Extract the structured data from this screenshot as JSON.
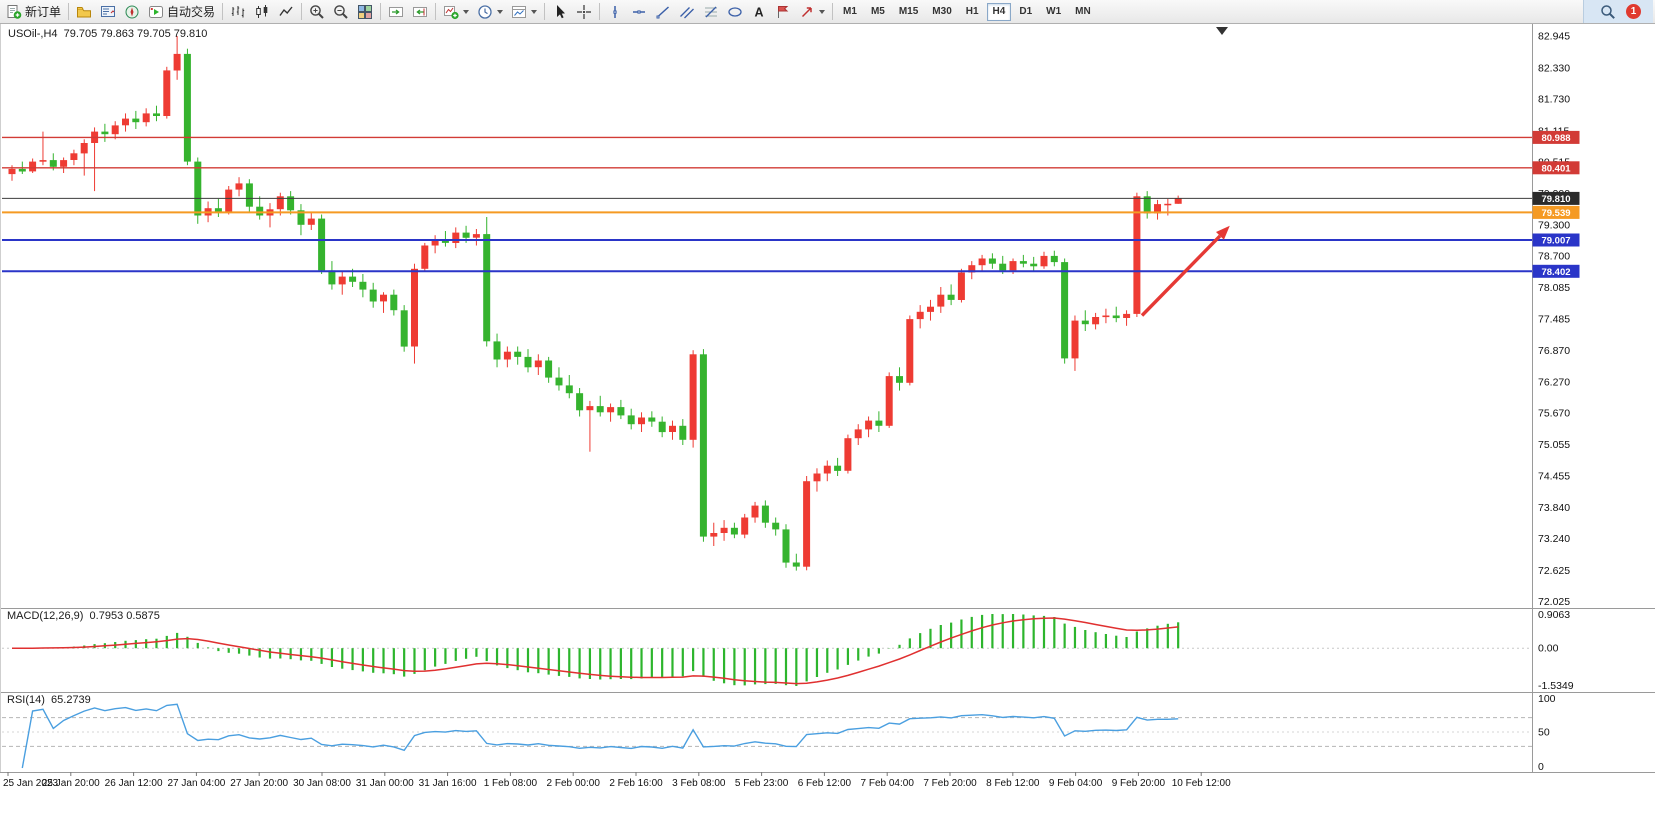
{
  "toolbar": {
    "notification_count": "1",
    "active_timeframe": "H4",
    "timeframes": [
      "M1",
      "M5",
      "M15",
      "M30",
      "H1",
      "H4",
      "D1",
      "W1",
      "MN"
    ],
    "items": [
      {
        "type": "btn",
        "icon": "new-order",
        "label": "新订单",
        "name": "new-order-button"
      },
      {
        "type": "sep"
      },
      {
        "type": "btn",
        "icon": "profiles",
        "name": "profiles-button"
      },
      {
        "type": "btn",
        "icon": "market-watch",
        "name": "market-watch-button"
      },
      {
        "type": "btn",
        "icon": "navigator",
        "name": "navigator-button"
      },
      {
        "type": "btn",
        "icon": "auto-trading",
        "label": "自动交易",
        "name": "auto-trading-button"
      },
      {
        "type": "sep"
      },
      {
        "type": "btn",
        "icon": "chart-bars",
        "name": "bar-chart-button"
      },
      {
        "type": "btn",
        "icon": "chart-candles",
        "name": "candlestick-chart-button"
      },
      {
        "type": "btn",
        "icon": "chart-line",
        "name": "line-chart-button"
      },
      {
        "type": "sep"
      },
      {
        "type": "btn",
        "icon": "zoom-in",
        "name": "zoom-in-button"
      },
      {
        "type": "btn",
        "icon": "zoom-out",
        "name": "zoom-out-button"
      },
      {
        "type": "btn",
        "icon": "tile-windows",
        "name": "tile-windows-button"
      },
      {
        "type": "sep"
      },
      {
        "type": "btn",
        "icon": "auto-scroll",
        "name": "auto-scroll-button"
      },
      {
        "type": "btn",
        "icon": "chart-shift",
        "name": "chart-shift-button"
      },
      {
        "type": "sep"
      },
      {
        "type": "btn",
        "icon": "indicators",
        "caret": true,
        "name": "indicators-button"
      },
      {
        "type": "btn",
        "icon": "periods",
        "caret": true,
        "name": "periods-button"
      },
      {
        "type": "btn",
        "icon": "templates",
        "caret": true,
        "name": "templates-button"
      },
      {
        "type": "sep"
      },
      {
        "type": "btn",
        "icon": "cursor",
        "name": "cursor-button"
      },
      {
        "type": "btn",
        "icon": "crosshair",
        "name": "crosshair-button"
      },
      {
        "type": "sep"
      },
      {
        "type": "btn",
        "icon": "vline",
        "name": "vertical-line-button"
      },
      {
        "type": "btn",
        "icon": "hline",
        "name": "horizontal-line-button"
      },
      {
        "type": "btn",
        "icon": "trendline",
        "name": "trendline-button"
      },
      {
        "type": "btn",
        "icon": "channel",
        "name": "channel-button"
      },
      {
        "type": "btn",
        "icon": "fibonacci",
        "name": "fibonacci-button"
      },
      {
        "type": "btn",
        "icon": "shapes",
        "name": "shapes-button"
      },
      {
        "type": "btn",
        "icon": "text",
        "name": "text-button"
      },
      {
        "type": "btn",
        "icon": "text-label",
        "name": "text-label-button"
      },
      {
        "type": "btn",
        "icon": "arrows",
        "caret": true,
        "name": "arrows-button"
      },
      {
        "type": "sep"
      }
    ]
  },
  "chart": {
    "symbol_period": "USOil-,H4",
    "ohlc_text": "79.705 79.863 79.705 79.810"
  },
  "chart_data": {
    "type": "candlestick",
    "symbol": "USOil",
    "period": "H4",
    "colors": {
      "bull": "#ee3b33",
      "bear": "#35b32e",
      "macd_histogram": "#2db52d",
      "macd_signal": "#e03030",
      "rsi_line": "#4a9fe0",
      "resistance_line": "#d23b36",
      "support_line": "#2a35c8",
      "alert_line": "#f59a23",
      "bid_line": "#3c3c3c",
      "arrow": "#e53935"
    },
    "price_axis_ticks": [
      "82.945",
      "82.330",
      "81.730",
      "81.115",
      "80.515",
      "79.900",
      "79.300",
      "78.700",
      "78.085",
      "77.485",
      "76.870",
      "76.270",
      "75.670",
      "75.055",
      "74.455",
      "73.840",
      "73.240",
      "72.625",
      "72.025"
    ],
    "time_axis_labels": [
      "25 Jan 2023",
      "25 Jan 20:00",
      "26 Jan 12:00",
      "27 Jan 04:00",
      "27 Jan 20:00",
      "30 Jan 08:00",
      "31 Jan 00:00",
      "31 Jan 16:00",
      "1 Feb 08:00",
      "2 Feb 00:00",
      "2 Feb 16:00",
      "3 Feb 08:00",
      "5 Feb 23:00",
      "6 Feb 12:00",
      "7 Feb 04:00",
      "7 Feb 20:00",
      "8 Feb 12:00",
      "9 Feb 04:00",
      "9 Feb 20:00",
      "10 Feb 12:00"
    ],
    "horizontal_lines": [
      {
        "price": 80.988,
        "label": "80.988",
        "role": "resistance",
        "color": "#d23b36",
        "width": 1.4
      },
      {
        "price": 80.401,
        "label": "80.401",
        "role": "resistance",
        "color": "#d23b36",
        "width": 1.4
      },
      {
        "price": 79.539,
        "label": "79.539",
        "role": "alert",
        "color": "#f59a23",
        "width": 2
      },
      {
        "price": 79.007,
        "label": "79.007",
        "role": "support",
        "color": "#2a35c8",
        "width": 2
      },
      {
        "price": 78.402,
        "label": "78.402",
        "role": "support",
        "color": "#2a35c8",
        "width": 2
      }
    ],
    "bid_line": {
      "price": 79.81,
      "label": "79.810",
      "color": "#3c3c3c"
    },
    "annotations": [
      {
        "type": "arrow",
        "from": {
          "bar": 109.5,
          "price": 77.55
        },
        "to": {
          "bar": 118,
          "price": 79.28
        },
        "color": "#e53935"
      }
    ],
    "macd": {
      "label": "MACD(12,26,9)",
      "values_text": "0.7953 0.5875",
      "main_value": "0.7953",
      "signal_value": "0.5875",
      "params": [
        12,
        26,
        9
      ],
      "axis": {
        "max": "0.9063",
        "zero": "0.00",
        "min": "-1.5349"
      }
    },
    "rsi": {
      "label": "RSI(14)",
      "value": "65.2739",
      "period": 14,
      "axis": [
        "100",
        "50",
        "0"
      ],
      "levels": [
        70,
        50,
        30
      ]
    },
    "candles": [
      [
        80.28,
        80.45,
        80.15,
        80.38
      ],
      [
        80.38,
        80.52,
        80.28,
        80.33
      ],
      [
        80.33,
        80.58,
        80.3,
        80.52
      ],
      [
        80.52,
        81.1,
        80.45,
        80.55
      ],
      [
        80.55,
        80.68,
        80.35,
        80.42
      ],
      [
        80.42,
        80.6,
        80.3,
        80.55
      ],
      [
        80.55,
        80.75,
        80.45,
        80.68
      ],
      [
        80.68,
        80.95,
        80.25,
        80.88
      ],
      [
        80.88,
        81.18,
        79.95,
        81.1
      ],
      [
        81.1,
        81.25,
        80.9,
        81.05
      ],
      [
        81.05,
        81.3,
        80.95,
        81.22
      ],
      [
        81.22,
        81.45,
        81.1,
        81.35
      ],
      [
        81.35,
        81.5,
        81.15,
        81.28
      ],
      [
        81.28,
        81.55,
        81.2,
        81.45
      ],
      [
        81.45,
        81.6,
        81.3,
        81.4
      ],
      [
        81.4,
        82.35,
        81.35,
        82.28
      ],
      [
        82.28,
        82.945,
        82.1,
        82.6
      ],
      [
        82.6,
        82.7,
        80.45,
        80.52
      ],
      [
        80.52,
        80.6,
        79.32,
        79.48
      ],
      [
        79.48,
        79.75,
        79.35,
        79.62
      ],
      [
        79.62,
        79.8,
        79.45,
        79.55
      ],
      [
        79.55,
        80.05,
        79.5,
        79.98
      ],
      [
        79.98,
        80.22,
        79.85,
        80.1
      ],
      [
        80.1,
        80.18,
        79.55,
        79.65
      ],
      [
        79.65,
        79.85,
        79.4,
        79.48
      ],
      [
        79.48,
        79.72,
        79.25,
        79.6
      ],
      [
        79.6,
        79.92,
        79.48,
        79.85
      ],
      [
        79.85,
        79.95,
        79.5,
        79.58
      ],
      [
        79.58,
        79.7,
        79.1,
        79.3
      ],
      [
        79.3,
        79.55,
        79.2,
        79.42
      ],
      [
        79.42,
        79.5,
        78.35,
        78.42
      ],
      [
        78.42,
        78.6,
        78.05,
        78.15
      ],
      [
        78.15,
        78.4,
        77.95,
        78.3
      ],
      [
        78.3,
        78.45,
        78.1,
        78.2
      ],
      [
        78.2,
        78.35,
        77.9,
        78.05
      ],
      [
        78.05,
        78.18,
        77.7,
        77.82
      ],
      [
        77.82,
        78.0,
        77.6,
        77.95
      ],
      [
        77.95,
        78.05,
        77.55,
        77.65
      ],
      [
        77.65,
        77.75,
        76.85,
        76.95
      ],
      [
        76.95,
        78.55,
        76.62,
        78.45
      ],
      [
        78.45,
        78.95,
        78.4,
        78.9
      ],
      [
        78.9,
        79.1,
        78.75,
        79.02
      ],
      [
        79.02,
        79.18,
        78.88,
        78.95
      ],
      [
        78.95,
        79.25,
        78.85,
        79.15
      ],
      [
        79.15,
        79.28,
        78.95,
        79.05
      ],
      [
        79.05,
        79.22,
        78.9,
        79.12
      ],
      [
        79.12,
        79.45,
        76.95,
        77.05
      ],
      [
        77.05,
        77.2,
        76.55,
        76.7
      ],
      [
        76.7,
        76.95,
        76.55,
        76.85
      ],
      [
        76.85,
        76.95,
        76.6,
        76.75
      ],
      [
        76.75,
        76.9,
        76.45,
        76.55
      ],
      [
        76.55,
        76.8,
        76.4,
        76.68
      ],
      [
        76.68,
        76.75,
        76.25,
        76.35
      ],
      [
        76.35,
        76.55,
        76.1,
        76.2
      ],
      [
        76.2,
        76.4,
        75.95,
        76.05
      ],
      [
        76.05,
        76.15,
        75.6,
        75.72
      ],
      [
        75.72,
        75.9,
        74.92,
        75.8
      ],
      [
        75.8,
        76.0,
        75.6,
        75.68
      ],
      [
        75.68,
        75.85,
        75.5,
        75.78
      ],
      [
        75.78,
        75.92,
        75.55,
        75.62
      ],
      [
        75.62,
        75.75,
        75.35,
        75.45
      ],
      [
        75.45,
        75.68,
        75.3,
        75.58
      ],
      [
        75.58,
        75.7,
        75.4,
        75.5
      ],
      [
        75.5,
        75.6,
        75.2,
        75.3
      ],
      [
        75.3,
        75.52,
        75.15,
        75.42
      ],
      [
        75.42,
        75.55,
        75.05,
        75.15
      ],
      [
        75.15,
        76.88,
        75.0,
        76.8
      ],
      [
        76.8,
        76.9,
        73.18,
        73.28
      ],
      [
        73.28,
        73.55,
        73.1,
        73.35
      ],
      [
        73.35,
        73.6,
        73.2,
        73.45
      ],
      [
        73.45,
        73.55,
        73.25,
        73.32
      ],
      [
        73.32,
        73.72,
        73.25,
        73.65
      ],
      [
        73.65,
        73.95,
        73.55,
        73.88
      ],
      [
        73.88,
        73.98,
        73.45,
        73.55
      ],
      [
        73.55,
        73.65,
        73.3,
        73.42
      ],
      [
        73.42,
        73.52,
        72.68,
        72.78
      ],
      [
        72.78,
        72.95,
        72.625,
        72.7
      ],
      [
        72.7,
        74.45,
        72.63,
        74.35
      ],
      [
        74.35,
        74.6,
        74.15,
        74.5
      ],
      [
        74.5,
        74.75,
        74.35,
        74.65
      ],
      [
        74.65,
        74.8,
        74.45,
        74.55
      ],
      [
        74.55,
        75.25,
        74.5,
        75.18
      ],
      [
        75.18,
        75.45,
        75.05,
        75.35
      ],
      [
        75.35,
        75.6,
        75.2,
        75.52
      ],
      [
        75.52,
        75.7,
        75.3,
        75.42
      ],
      [
        75.42,
        76.45,
        75.38,
        76.38
      ],
      [
        76.38,
        76.55,
        76.1,
        76.25
      ],
      [
        76.25,
        77.55,
        76.2,
        77.48
      ],
      [
        77.48,
        77.75,
        77.3,
        77.62
      ],
      [
        77.62,
        77.85,
        77.45,
        77.72
      ],
      [
        77.72,
        78.1,
        77.6,
        77.95
      ],
      [
        77.95,
        78.15,
        77.75,
        77.85
      ],
      [
        77.85,
        78.45,
        77.8,
        78.38
      ],
      [
        78.38,
        78.6,
        78.25,
        78.52
      ],
      [
        78.52,
        78.72,
        78.4,
        78.65
      ],
      [
        78.65,
        78.75,
        78.45,
        78.55
      ],
      [
        78.55,
        78.7,
        78.35,
        78.42
      ],
      [
        78.42,
        78.65,
        78.35,
        78.6
      ],
      [
        78.6,
        78.72,
        78.48,
        78.55
      ],
      [
        78.55,
        78.68,
        78.4,
        78.5
      ],
      [
        78.5,
        78.78,
        78.45,
        78.7
      ],
      [
        78.7,
        78.8,
        78.5,
        78.58
      ],
      [
        78.58,
        78.65,
        76.62,
        76.72
      ],
      [
        76.72,
        77.55,
        76.48,
        77.45
      ],
      [
        77.45,
        77.65,
        77.25,
        77.38
      ],
      [
        77.38,
        77.6,
        77.28,
        77.52
      ],
      [
        77.52,
        77.68,
        77.4,
        77.55
      ],
      [
        77.55,
        77.72,
        77.42,
        77.5
      ],
      [
        77.5,
        77.65,
        77.35,
        77.58
      ],
      [
        77.58,
        79.92,
        77.52,
        79.85
      ],
      [
        79.85,
        79.95,
        79.42,
        79.52
      ],
      [
        79.52,
        79.78,
        79.4,
        79.7
      ],
      [
        79.7,
        79.8,
        79.48,
        79.705
      ],
      [
        79.705,
        79.863,
        79.705,
        79.81
      ]
    ]
  }
}
